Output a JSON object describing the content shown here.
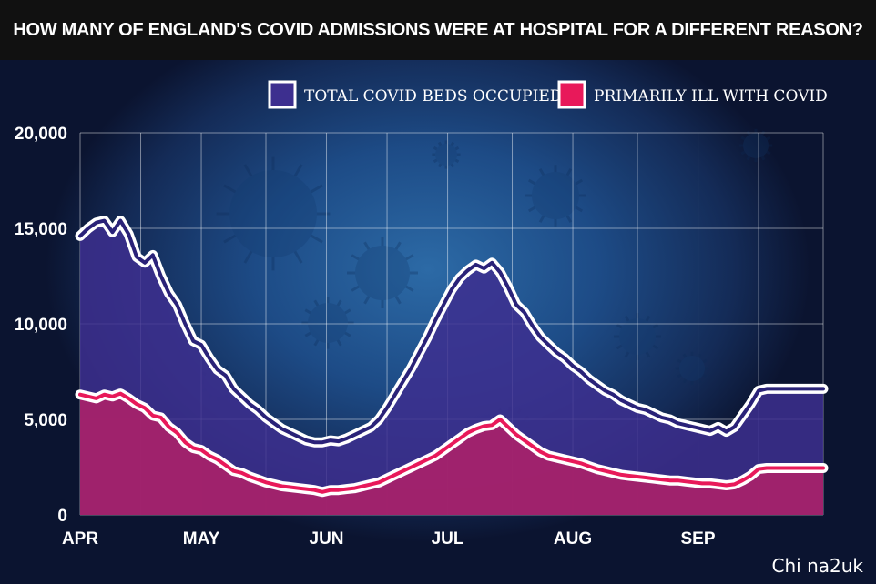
{
  "title": "HOW MANY OF ENGLAND'S COVID ADMISSIONS WERE AT HOSPITAL FOR A DIFFERENT REASON?",
  "watermark": "Chi na2uk",
  "colors": {
    "total_fill": "#3d2f8f",
    "total_line": "#2a2278",
    "primary_fill": "#a8226a",
    "primary_line": "#e8195a",
    "outline": "#ffffff",
    "background": "#1d4b86",
    "title_bar": "#111111"
  },
  "chart_data": {
    "type": "area",
    "title": "HOW MANY OF ENGLAND'S COVID ADMISSIONS WERE AT HOSPITAL FOR A DIFFERENT REASON?",
    "xlabel": "",
    "ylabel": "",
    "ylim": [
      0,
      20000
    ],
    "yticks": [
      "20,000",
      "15,000",
      "10,000",
      "5,000",
      "0"
    ],
    "ytick_values": [
      20000,
      15000,
      10000,
      5000,
      0
    ],
    "xticks": [
      "APR",
      "MAY",
      "JUN",
      "JUL",
      "AUG",
      "SEP"
    ],
    "xtick_days": [
      0,
      30,
      61,
      91,
      122,
      153
    ],
    "x_unit": "days",
    "grid": true,
    "legend_position": "top",
    "series": [
      {
        "name": "TOTAL COVID BEDS OCCUPIED",
        "x": [
          0,
          2,
          4,
          6,
          8,
          10,
          12,
          14,
          16,
          18,
          20,
          22,
          24,
          26,
          28,
          30,
          32,
          34,
          36,
          38,
          40,
          42,
          44,
          46,
          48,
          50,
          52,
          54,
          56,
          58,
          60,
          62,
          64,
          66,
          68,
          70,
          72,
          74,
          76,
          78,
          80,
          82,
          84,
          86,
          88,
          90,
          92,
          94,
          96,
          98,
          100,
          102,
          104,
          106,
          108,
          110,
          112,
          114,
          116,
          118,
          120,
          122,
          124,
          126,
          128,
          130,
          132,
          134,
          136,
          138,
          140,
          142,
          144,
          146,
          148,
          150,
          152,
          154,
          156,
          158,
          160,
          162,
          164,
          166,
          168,
          170,
          172,
          174,
          176,
          178,
          180,
          182
        ],
        "values": [
          14600,
          15000,
          15300,
          15400,
          14800,
          15400,
          14700,
          13500,
          13200,
          13600,
          12500,
          11600,
          11000,
          10000,
          9100,
          8900,
          8200,
          7600,
          7300,
          6600,
          6200,
          5800,
          5500,
          5100,
          4800,
          4500,
          4300,
          4100,
          3900,
          3800,
          3800,
          3900,
          3850,
          4000,
          4200,
          4400,
          4600,
          5000,
          5600,
          6300,
          7000,
          7700,
          8500,
          9300,
          10200,
          11000,
          11800,
          12400,
          12800,
          13100,
          12900,
          13200,
          12700,
          11900,
          11000,
          10600,
          9900,
          9300,
          8900,
          8500,
          8200,
          7800,
          7500,
          7100,
          6800,
          6500,
          6300,
          6000,
          5800,
          5600,
          5500,
          5300,
          5100,
          5000,
          4800,
          4700,
          4600,
          4500,
          4400,
          4600,
          4350,
          4600,
          5200,
          5800,
          6500,
          6600,
          6600,
          6600,
          6600,
          6600,
          6600,
          6600
        ],
        "end_day": 184
      },
      {
        "name": "PRIMARILY ILL WITH COVID",
        "x": [
          0,
          2,
          4,
          6,
          8,
          10,
          12,
          14,
          16,
          18,
          20,
          22,
          24,
          26,
          28,
          30,
          32,
          34,
          36,
          38,
          40,
          42,
          44,
          46,
          48,
          50,
          52,
          54,
          56,
          58,
          60,
          62,
          64,
          66,
          68,
          70,
          72,
          74,
          76,
          78,
          80,
          82,
          84,
          86,
          88,
          90,
          92,
          94,
          96,
          98,
          100,
          102,
          104,
          106,
          108,
          110,
          112,
          114,
          116,
          118,
          120,
          122,
          124,
          126,
          128,
          130,
          132,
          134,
          136,
          138,
          140,
          142,
          144,
          146,
          148,
          150,
          152,
          154,
          156,
          158,
          160,
          162,
          164,
          166,
          168,
          170,
          172,
          174,
          176,
          178,
          180,
          182
        ],
        "values": [
          6300,
          6200,
          6100,
          6300,
          6200,
          6350,
          6100,
          5800,
          5600,
          5200,
          5100,
          4600,
          4300,
          3800,
          3500,
          3400,
          3100,
          2900,
          2600,
          2300,
          2200,
          2000,
          1850,
          1700,
          1600,
          1500,
          1450,
          1400,
          1350,
          1300,
          1200,
          1300,
          1300,
          1350,
          1400,
          1500,
          1600,
          1700,
          1900,
          2100,
          2300,
          2500,
          2700,
          2900,
          3100,
          3400,
          3700,
          4000,
          4300,
          4500,
          4650,
          4700,
          5000,
          4600,
          4200,
          3900,
          3600,
          3300,
          3100,
          3000,
          2900,
          2800,
          2700,
          2550,
          2400,
          2300,
          2200,
          2100,
          2050,
          2000,
          1950,
          1900,
          1850,
          1800,
          1800,
          1750,
          1700,
          1650,
          1650,
          1600,
          1550,
          1600,
          1800,
          2050,
          2400,
          2450,
          2450,
          2450,
          2450,
          2450,
          2450,
          2450
        ],
        "end_day": 184
      }
    ]
  }
}
